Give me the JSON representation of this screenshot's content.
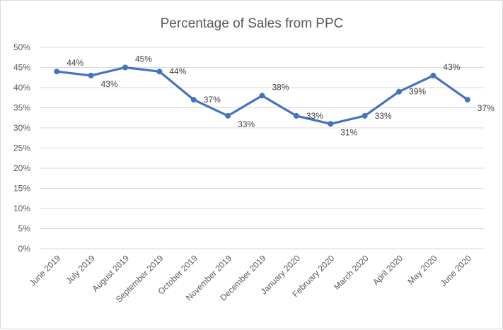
{
  "chart_data": {
    "type": "line",
    "title": "Percentage of Sales from PPC",
    "xlabel": "",
    "ylabel": "",
    "categories": [
      "June 2019",
      "July 2019",
      "August 2019",
      "September 2019",
      "October 2019",
      "November 2019",
      "December 2019",
      "January 2020",
      "February 2020",
      "March 2020",
      "April 2020",
      "May 2020",
      "June 2020"
    ],
    "values": [
      44,
      43,
      45,
      44,
      37,
      33,
      38,
      33,
      31,
      33,
      39,
      43,
      37
    ],
    "data_labels": [
      "44%",
      "43%",
      "45%",
      "44%",
      "37%",
      "33%",
      "38%",
      "33%",
      "31%",
      "33%",
      "39%",
      "43%",
      "37%"
    ],
    "y_ticks": [
      "0%",
      "5%",
      "10%",
      "15%",
      "20%",
      "25%",
      "30%",
      "35%",
      "40%",
      "45%",
      "50%"
    ],
    "ylim": [
      0,
      50
    ],
    "grid": true,
    "legend": "none",
    "line_color": "#4472c4",
    "grid_color": "#d9d9d9"
  }
}
